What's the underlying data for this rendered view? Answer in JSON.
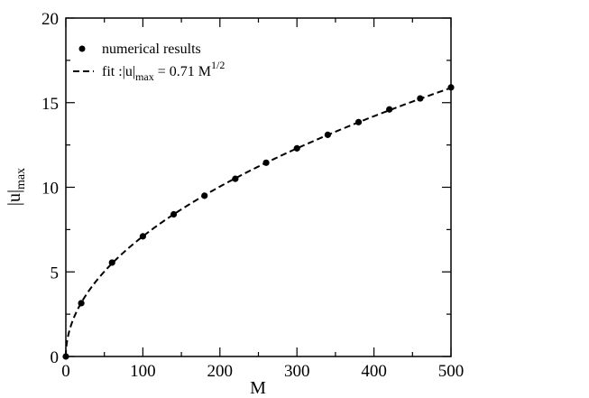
{
  "chart_data": {
    "type": "scatter",
    "title": "",
    "xlabel": "M",
    "ylabel": {
      "main": "|u|",
      "sub": "max"
    },
    "xlim": [
      0,
      500
    ],
    "ylim": [
      0,
      20
    ],
    "x_ticks": [
      0,
      100,
      200,
      300,
      400,
      500
    ],
    "y_ticks": [
      0,
      5,
      10,
      15,
      20
    ],
    "grid": false,
    "legend_position": "top-left",
    "series": [
      {
        "name": "numerical results",
        "kind": "markers",
        "marker": "filled-circle",
        "color": "#000000",
        "x": [
          0,
          20,
          60,
          100,
          140,
          180,
          220,
          260,
          300,
          340,
          380,
          420,
          460,
          500
        ],
        "y": [
          0.0,
          3.15,
          5.55,
          7.1,
          8.4,
          9.5,
          10.5,
          11.45,
          12.3,
          13.1,
          13.85,
          14.6,
          15.25,
          15.9
        ]
      },
      {
        "name": "fit",
        "kind": "dashed-line",
        "color": "#000000",
        "coefficient": 0.71,
        "exponent": 0.5
      }
    ],
    "legend": {
      "markers_label": "numerical results",
      "fit_label_prefix": "fit :|u|",
      "fit_label_sub": "max",
      "fit_label_mid": " = 0.71 M",
      "fit_label_sup": "1/2"
    }
  }
}
